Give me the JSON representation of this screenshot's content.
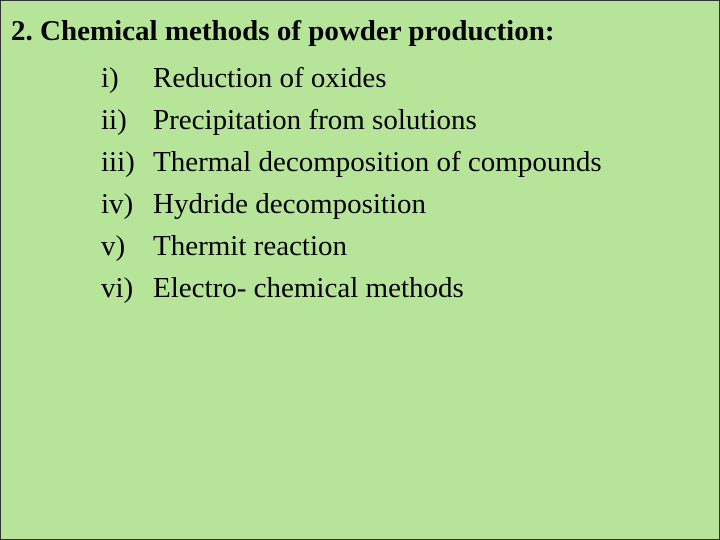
{
  "slide": {
    "background_color": "#b6e59a",
    "text_color": "#000000",
    "font_family": "Times New Roman",
    "title_fontsize": 29,
    "item_fontsize": 29,
    "title": "2. Chemical methods of powder production:",
    "items": [
      {
        "numeral": "i)",
        "text": "Reduction of oxides"
      },
      {
        "numeral": "ii)",
        "text": "Precipitation from solutions"
      },
      {
        "numeral": "iii)",
        "text": "Thermal decomposition of compounds"
      },
      {
        "numeral": "iv)",
        "text": "Hydride decomposition"
      },
      {
        "numeral": "v)",
        "text": "Thermit reaction"
      },
      {
        "numeral": "vi)",
        "text": "Electro- chemical methods"
      }
    ]
  }
}
